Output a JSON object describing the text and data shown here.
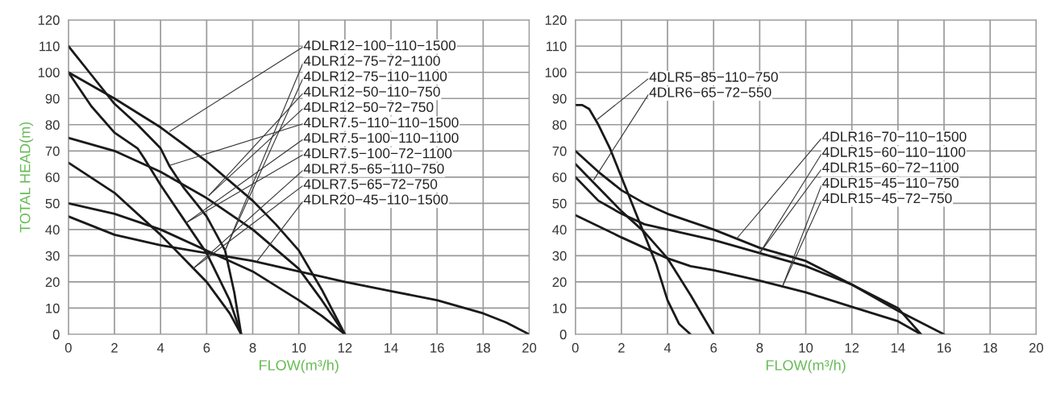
{
  "chart_data": [
    {
      "type": "line",
      "xlabel": "FLOW(m³/h)",
      "ylabel": "TOTAL HEAD(m)",
      "xlim": [
        0,
        20
      ],
      "ylim": [
        0,
        120
      ],
      "xticks": [
        0,
        2,
        4,
        6,
        8,
        10,
        12,
        14,
        16,
        18,
        20
      ],
      "yticks": [
        0,
        10,
        20,
        30,
        40,
        50,
        60,
        70,
        80,
        90,
        100,
        110,
        120
      ],
      "grid": true,
      "series": [
        {
          "color": "#1a1a1a",
          "x": [
            0,
            1,
            2,
            3,
            4,
            4.4,
            5,
            6,
            6.8,
            7.2,
            7.5
          ],
          "values": [
            110,
            99,
            88,
            80,
            71,
            64,
            56,
            45,
            32,
            16,
            0
          ]
        },
        {
          "color": "#1a1a1a",
          "x": [
            0,
            1,
            2,
            3,
            3.3,
            4,
            5,
            6,
            7,
            7.5
          ],
          "values": [
            100,
            87,
            77,
            71,
            67,
            57,
            44,
            31,
            13,
            0
          ]
        },
        {
          "color": "#1a1a1a",
          "x": [
            0,
            2,
            4,
            6,
            8,
            9,
            10,
            11,
            12
          ],
          "values": [
            100,
            90,
            79,
            66,
            51,
            42,
            32,
            17,
            0
          ]
        },
        {
          "color": "#1a1a1a",
          "x": [
            0,
            2,
            4,
            6,
            8,
            10,
            11,
            12
          ],
          "values": [
            75,
            70,
            62,
            52,
            40,
            25,
            13,
            0
          ]
        },
        {
          "color": "#1a1a1a",
          "x": [
            0,
            2,
            4,
            6,
            7,
            7.5
          ],
          "values": [
            65.5,
            54,
            38,
            20,
            8,
            0
          ]
        },
        {
          "color": "#1a1a1a",
          "x": [
            0,
            2,
            4,
            6,
            8,
            10,
            11,
            12
          ],
          "values": [
            50,
            46,
            40,
            32,
            24,
            13,
            7,
            0
          ]
        },
        {
          "color": "#1a1a1a",
          "x": [
            0,
            2,
            4,
            6,
            8,
            10,
            12,
            14,
            16,
            18,
            19,
            20
          ],
          "values": [
            45,
            38,
            34,
            31,
            28,
            24,
            20,
            16.5,
            13,
            8,
            4.5,
            0
          ]
        }
      ],
      "annotations": [
        {
          "text": "4DLR12−100−110−1500",
          "x": 4.4,
          "y": 77.5
        },
        {
          "text": "4DLR12−75−72−1100",
          "x": 6.8,
          "y": 32
        },
        {
          "text": "4DLR12−75−110−1100",
          "x": 6.8,
          "y": 32
        },
        {
          "text": "4DLR12−50−110−750",
          "x": 6.1,
          "y": 53
        },
        {
          "text": "4DLR12−50−72−750",
          "x": 6.1,
          "y": 53
        },
        {
          "text": "4DLR7.5−110−110−1500",
          "x": 4.4,
          "y": 64.5
        },
        {
          "text": "4DLR7.5−100−110−1100",
          "x": 5.1,
          "y": 42.5
        },
        {
          "text": "4DLR7.5−100−72−1100",
          "x": 5.1,
          "y": 42.5
        },
        {
          "text": "4DLR7.5−65−110−750",
          "x": 5.4,
          "y": 25
        },
        {
          "text": "4DLR7.5−65−72−750",
          "x": 5.4,
          "y": 25
        },
        {
          "text": "4DLR20−45−110−1500",
          "x": 8.2,
          "y": 28
        }
      ]
    },
    {
      "type": "line",
      "xlabel": "FLOW(m³/h)",
      "xlim": [
        0,
        20
      ],
      "ylim": [
        0,
        120
      ],
      "xticks": [
        0,
        2,
        4,
        6,
        8,
        10,
        12,
        14,
        16,
        18,
        20
      ],
      "yticks": [
        0,
        10,
        20,
        30,
        40,
        50,
        60,
        70,
        80,
        90,
        100,
        110,
        120
      ],
      "grid": true,
      "series": [
        {
          "color": "#1a1a1a",
          "x": [
            0,
            0.3,
            0.6,
            1,
            1.5,
            2,
            2.5,
            3,
            3.5,
            4,
            4.5,
            5
          ],
          "values": [
            87.5,
            87.5,
            86,
            80,
            71,
            60,
            49,
            38,
            27,
            13,
            4,
            0
          ]
        },
        {
          "color": "#1a1a1a",
          "x": [
            0,
            1,
            2,
            3,
            4,
            5,
            6
          ],
          "values": [
            65,
            56,
            47,
            39,
            29,
            15,
            0
          ]
        },
        {
          "color": "#1a1a1a",
          "x": [
            0,
            1,
            2,
            3,
            4,
            6,
            8,
            10,
            12,
            14,
            16
          ],
          "values": [
            70,
            62,
            55,
            50,
            46,
            40,
            33,
            28,
            19,
            9,
            0
          ]
        },
        {
          "color": "#1a1a1a",
          "x": [
            0,
            1,
            2,
            3,
            4,
            6,
            8,
            10,
            12,
            14,
            14.6,
            15
          ],
          "values": [
            60,
            51,
            46,
            42,
            40,
            36,
            31,
            26,
            19,
            10,
            4,
            0
          ]
        },
        {
          "color": "#1a1a1a",
          "x": [
            0,
            2,
            3,
            4,
            5,
            6,
            8,
            10,
            12,
            14,
            15
          ],
          "values": [
            45.5,
            37,
            33,
            29,
            26,
            24.5,
            20.5,
            16,
            10.5,
            5,
            0
          ]
        }
      ],
      "annotations": [
        {
          "text": "4DLR5−85−110−750",
          "x": 0.95,
          "y": 82
        },
        {
          "text": "4DLR6−65−72−550",
          "x": 0.8,
          "y": 59
        },
        {
          "text": "4DLR16−70−110−1500",
          "x": 7,
          "y": 36.5
        },
        {
          "text": "4DLR15−60−110−1100",
          "x": 8,
          "y": 31
        },
        {
          "text": "4DLR15−60−72−1100",
          "x": 8,
          "y": 31
        },
        {
          "text": "4DLR15−45−110−750",
          "x": 9,
          "y": 18.5
        },
        {
          "text": "4DLR15−45−72−750",
          "x": 9,
          "y": 18.5
        }
      ]
    }
  ]
}
